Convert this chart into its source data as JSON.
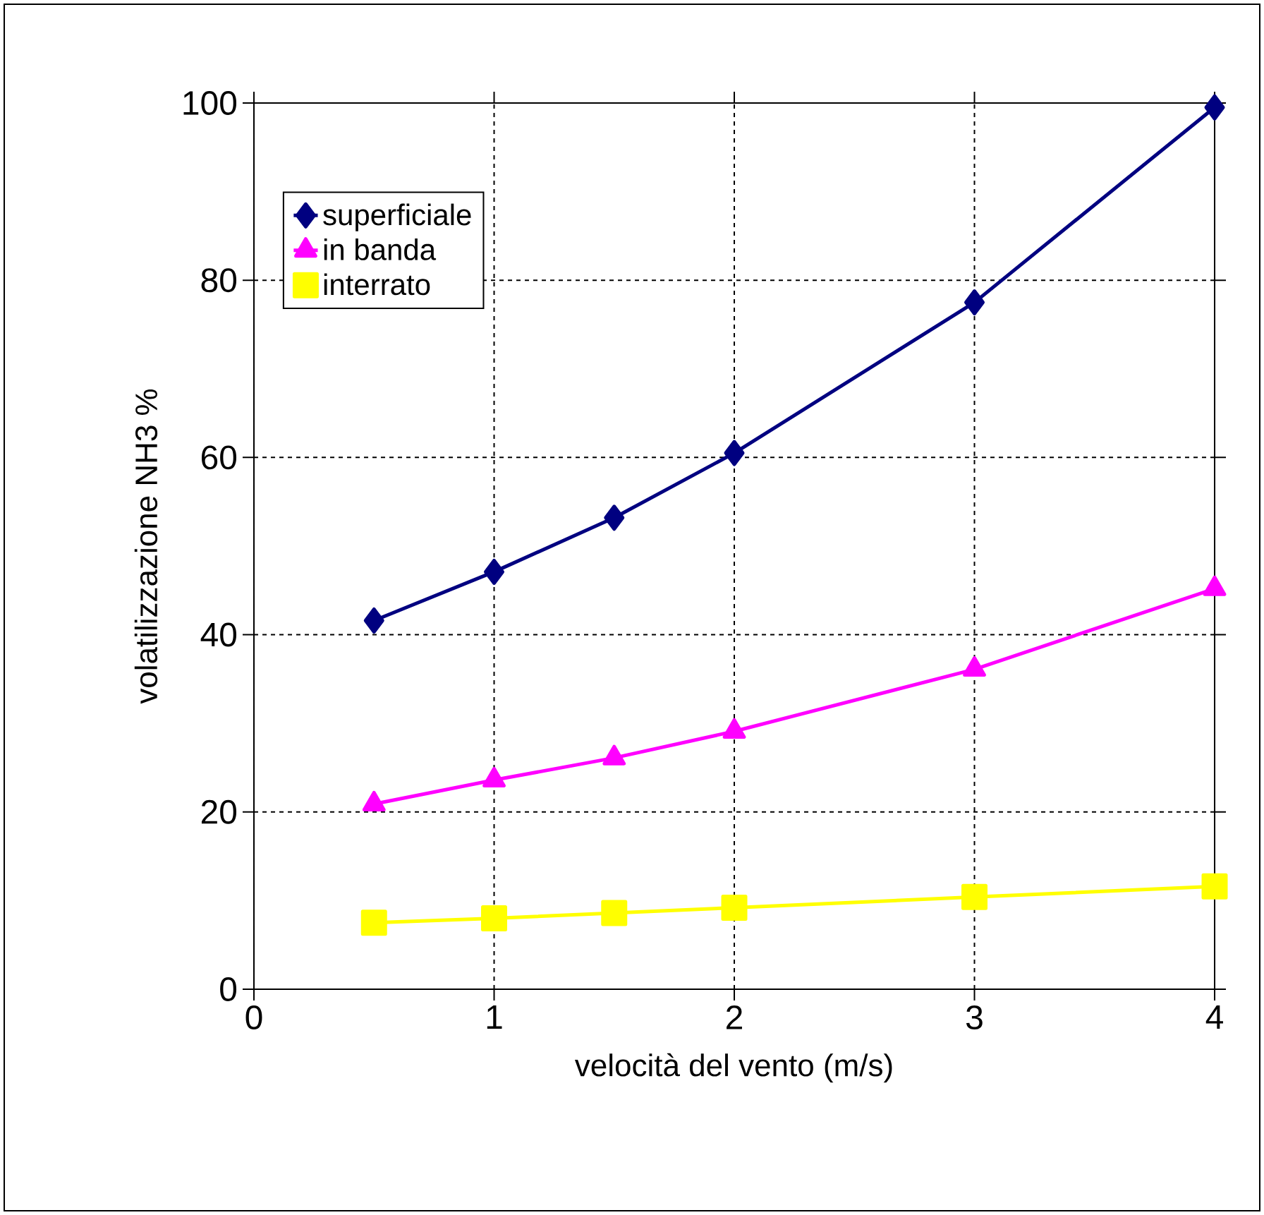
{
  "chart_data": {
    "type": "line",
    "xlabel": "velocità del vento (m/s)",
    "ylabel": "volatilizzazione NH3  %",
    "x": [
      0.5,
      1,
      1.5,
      2,
      3,
      4
    ],
    "series": [
      {
        "name": "superficiale",
        "color": "#000080",
        "marker": "diamond",
        "values": [
          41.6,
          47.1,
          53.2,
          60.5,
          77.5,
          99.5
        ]
      },
      {
        "name": "in banda",
        "color": "#ff00ff",
        "marker": "triangle",
        "values": [
          20.9,
          23.6,
          26.1,
          29.1,
          36.1,
          45.2
        ]
      },
      {
        "name": "interrato",
        "color": "#ffff00",
        "marker": "square",
        "values": [
          7.5,
          8.0,
          8.6,
          9.2,
          10.4,
          11.6
        ]
      }
    ],
    "xlim": [
      0,
      4
    ],
    "ylim": [
      0,
      100
    ],
    "xticks": [
      0,
      1,
      2,
      3,
      4
    ],
    "yticks": [
      0,
      20,
      40,
      60,
      80,
      100
    ],
    "grid": true,
    "legend": "top left",
    "line_style": "solid"
  }
}
